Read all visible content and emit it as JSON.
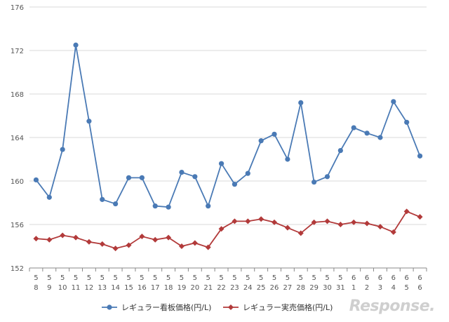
{
  "chart_data": {
    "type": "line",
    "title": "",
    "xlabel": "",
    "ylabel": "",
    "ylim": [
      152,
      176
    ],
    "yticks": [
      152,
      156,
      160,
      164,
      168,
      172,
      176
    ],
    "grid": "horizontal",
    "legend_position": "bottom",
    "categories": [
      {
        "top": "5",
        "bottom": "8"
      },
      {
        "top": "5",
        "bottom": "9"
      },
      {
        "top": "5",
        "bottom": "10"
      },
      {
        "top": "5",
        "bottom": "11"
      },
      {
        "top": "5",
        "bottom": "12"
      },
      {
        "top": "5",
        "bottom": "13"
      },
      {
        "top": "5",
        "bottom": "14"
      },
      {
        "top": "5",
        "bottom": "15"
      },
      {
        "top": "5",
        "bottom": "16"
      },
      {
        "top": "5",
        "bottom": "17"
      },
      {
        "top": "5",
        "bottom": "18"
      },
      {
        "top": "5",
        "bottom": "19"
      },
      {
        "top": "5",
        "bottom": "20"
      },
      {
        "top": "5",
        "bottom": "21"
      },
      {
        "top": "5",
        "bottom": "22"
      },
      {
        "top": "5",
        "bottom": "23"
      },
      {
        "top": "5",
        "bottom": "24"
      },
      {
        "top": "5",
        "bottom": "25"
      },
      {
        "top": "5",
        "bottom": "26"
      },
      {
        "top": "5",
        "bottom": "27"
      },
      {
        "top": "5",
        "bottom": "28"
      },
      {
        "top": "5",
        "bottom": "29"
      },
      {
        "top": "5",
        "bottom": "30"
      },
      {
        "top": "5",
        "bottom": "31"
      },
      {
        "top": "6",
        "bottom": "1"
      },
      {
        "top": "6",
        "bottom": "2"
      },
      {
        "top": "6",
        "bottom": "3"
      },
      {
        "top": "6",
        "bottom": "4"
      },
      {
        "top": "6",
        "bottom": "5"
      },
      {
        "top": "6",
        "bottom": "6"
      }
    ],
    "series": [
      {
        "name": "レギュラー看板価格(円/L)",
        "color": "#4a7ab5",
        "marker": "circle",
        "values": [
          160.1,
          158.5,
          162.9,
          172.5,
          165.5,
          158.3,
          157.9,
          160.3,
          160.3,
          157.7,
          157.6,
          160.8,
          160.4,
          157.7,
          161.6,
          159.7,
          160.7,
          163.7,
          164.3,
          162.0,
          167.2,
          159.9,
          160.4,
          162.8,
          164.9,
          164.4,
          164.0,
          167.3,
          165.4,
          162.3
        ]
      },
      {
        "name": "レギュラー実売価格(円/L)",
        "color": "#b23a3a",
        "marker": "diamond",
        "values": [
          154.7,
          154.6,
          155.0,
          154.8,
          154.4,
          154.2,
          153.8,
          154.1,
          154.9,
          154.6,
          154.8,
          154.0,
          154.3,
          153.9,
          155.6,
          156.3,
          156.3,
          156.5,
          156.2,
          155.7,
          155.2,
          156.2,
          156.3,
          156.0,
          156.2,
          156.1,
          155.8,
          155.3,
          157.2,
          156.7
        ]
      }
    ]
  },
  "watermark": "Response."
}
